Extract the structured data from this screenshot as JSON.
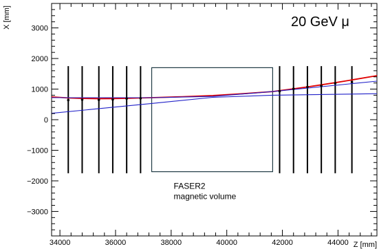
{
  "chart_data": {
    "type": "line",
    "annotation": "20 GeV μ",
    "xlabel": "Z [mm]",
    "ylabel": "X [mm]",
    "xlim": [
      33700,
      45400
    ],
    "ylim": [
      -3800,
      3800
    ],
    "x_ticks": [
      34000,
      36000,
      38000,
      40000,
      42000,
      44000
    ],
    "x_tick_labels": [
      "34000",
      "36000",
      "38000",
      "40000",
      "42000",
      "44000"
    ],
    "y_ticks": [
      -3000,
      -2000,
      -1000,
      0,
      1000,
      2000,
      3000
    ],
    "y_tick_labels": [
      "−3000",
      "−2000",
      "−1000",
      "0",
      "1000",
      "2000",
      "3000"
    ],
    "magnet_box": {
      "z_range": [
        37300,
        41650
      ],
      "x_range": [
        -1700,
        1700
      ],
      "label_lines": [
        "FASER2",
        "magnetic volume"
      ]
    },
    "detector_planes": {
      "z": [
        34300,
        34800,
        35400,
        35900,
        36400,
        36900,
        41900,
        42400,
        42900,
        43400,
        43900,
        44500
      ],
      "x_range": [
        -1750,
        1750
      ]
    },
    "series": [
      {
        "color": "#e00000",
        "x": [
          33700,
          34300,
          34800,
          35400,
          35900,
          36400,
          36900,
          37300,
          38400,
          39500,
          40600,
          41650,
          41900,
          42400,
          42900,
          43400,
          43900,
          44500,
          45400
        ],
        "y": [
          745,
          710,
          695,
          685,
          690,
          698,
          710,
          720,
          750,
          790,
          850,
          920,
          950,
          1010,
          1070,
          1140,
          1210,
          1300,
          1440
        ]
      },
      {
        "color": "#2020c8",
        "x": [
          33700,
          37300,
          39500,
          41650,
          45400
        ],
        "y": [
          210,
          530,
          730,
          800,
          850
        ]
      },
      {
        "color": "#2020c8",
        "x": [
          33700,
          37300,
          39500,
          41650,
          45400
        ],
        "y": [
          720,
          720,
          760,
          920,
          1260
        ]
      }
    ],
    "hit_points": {
      "x": [
        34300,
        34800,
        35400,
        35900,
        36400,
        36900,
        41900,
        42400,
        42900,
        43400,
        43900,
        44500
      ],
      "y": [
        640,
        655,
        650,
        660,
        690,
        700,
        930,
        1010,
        1070,
        1110,
        1190,
        1230
      ]
    }
  }
}
